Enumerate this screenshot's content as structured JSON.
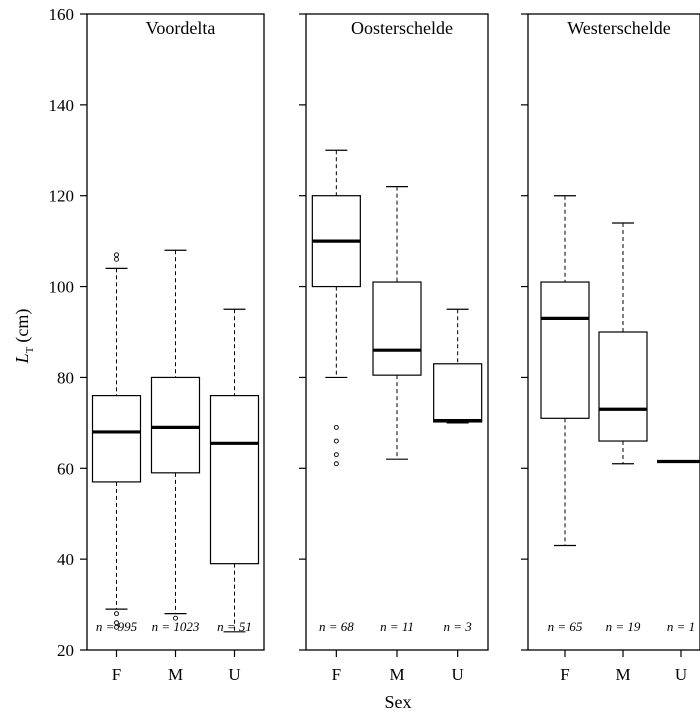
{
  "chart_data": {
    "type": "box",
    "ylabel": "L",
    "ylabel_sub": "T",
    "ylabel_unit": "(cm)",
    "xlabel": "Sex",
    "ylim": [
      20,
      160
    ],
    "yticks": [
      20,
      40,
      60,
      80,
      100,
      120,
      140,
      160
    ],
    "categories": [
      "F",
      "M",
      "U"
    ],
    "panels": [
      {
        "title": "Voordelta",
        "boxes": [
          {
            "category": "F",
            "n": "n = 995",
            "whisker_low": 29,
            "q1": 57,
            "median": 68,
            "q3": 76,
            "whisker_high": 104,
            "outliers": [
              107,
              106,
              28,
              26,
              25
            ]
          },
          {
            "category": "M",
            "n": "n = 1023",
            "whisker_low": 28,
            "q1": 59,
            "median": 69,
            "q3": 80,
            "whisker_high": 108,
            "outliers": [
              27
            ]
          },
          {
            "category": "U",
            "n": "n = 51",
            "whisker_low": 24,
            "q1": 39,
            "median": 65.5,
            "q3": 76,
            "whisker_high": 95,
            "outliers": []
          }
        ]
      },
      {
        "title": "Oosterschelde",
        "boxes": [
          {
            "category": "F",
            "n": "n = 68",
            "whisker_low": 80,
            "q1": 100,
            "median": 110,
            "q3": 120,
            "whisker_high": 130,
            "outliers": [
              69,
              66,
              63,
              61
            ]
          },
          {
            "category": "M",
            "n": "n = 11",
            "whisker_low": 62,
            "q1": 80.5,
            "median": 86,
            "q3": 101,
            "whisker_high": 122,
            "outliers": []
          },
          {
            "category": "U",
            "n": "n = 3",
            "whisker_low": 70,
            "q1": 70.2,
            "median": 70.5,
            "q3": 83,
            "whisker_high": 95,
            "outliers": []
          }
        ]
      },
      {
        "title": "Westerschelde",
        "boxes": [
          {
            "category": "F",
            "n": "n = 65",
            "whisker_low": 43,
            "q1": 71,
            "median": 93,
            "q3": 101,
            "whisker_high": 120,
            "outliers": []
          },
          {
            "category": "M",
            "n": "n = 19",
            "whisker_low": 61,
            "q1": 66,
            "median": 73,
            "q3": 90,
            "whisker_high": 114,
            "outliers": []
          },
          {
            "category": "U",
            "n": "n = 1",
            "whisker_low": 61.5,
            "q1": 61.5,
            "median": 61.5,
            "q3": 61.5,
            "whisker_high": 61.5,
            "outliers": []
          }
        ]
      }
    ]
  }
}
